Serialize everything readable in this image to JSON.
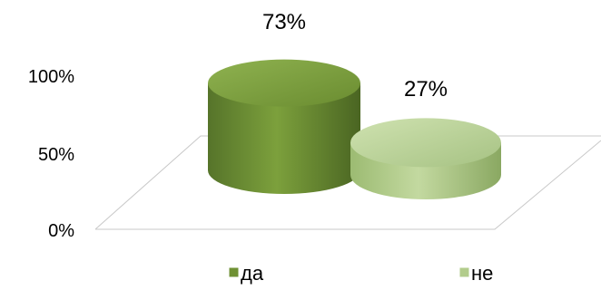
{
  "chart_data": {
    "type": "bar",
    "categories": [
      "да",
      "не"
    ],
    "values": [
      73,
      27
    ],
    "data_labels": [
      "73%",
      "27%"
    ],
    "y_ticks": [
      "0%",
      "50%",
      "100%"
    ],
    "ylim": [
      0,
      100
    ],
    "series_colors": [
      "#6f9134",
      "#b2cc8c"
    ],
    "legend_position": "bottom",
    "style": "3d-cylinder"
  }
}
